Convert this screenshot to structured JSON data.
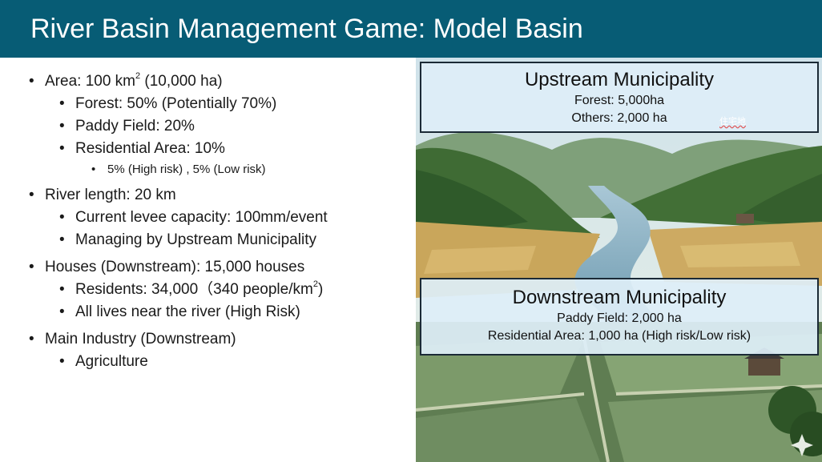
{
  "slide": {
    "title": "River Basin Management Game: Model Basin"
  },
  "bullets": [
    {
      "level": 1,
      "text": "Area: 100 km",
      "sup": "2",
      "after": " (10,000 ha)"
    },
    {
      "level": 2,
      "text": "Forest: 50% (Potentially 70%)"
    },
    {
      "level": 2,
      "text": "Paddy Field: 20%"
    },
    {
      "level": 2,
      "text": "Residential Area: 10%"
    },
    {
      "level": 3,
      "text": "5% (High risk) , 5% (Low risk)"
    },
    {
      "level": 1,
      "text": "River length: 20 km"
    },
    {
      "level": 2,
      "text": "Current levee capacity: 100mm/event"
    },
    {
      "level": 2,
      "text": "Managing by Upstream Municipality"
    },
    {
      "level": 1,
      "text": "Houses (Downstream): 15,000 houses"
    },
    {
      "level": 2,
      "text": "Residents: 34,000（340 people/km",
      "sup": "2",
      "after": ")"
    },
    {
      "level": 2,
      "text": "All lives near the river (High Risk)"
    },
    {
      "level": 1,
      "text": "Main Industry (Downstream)"
    },
    {
      "level": 2,
      "text": "Agriculture"
    }
  ],
  "upstream": {
    "heading": "Upstream Municipality",
    "line1": "Forest: 5,000ha",
    "line2": "Others: 2,000 ha",
    "annotation": "住宅地"
  },
  "downstream": {
    "heading": "Downstream Municipality",
    "line1": "Paddy Field: 2,000 ha",
    "line2": "Residential Area: 1,000 ha (High risk/Low risk)"
  },
  "colors": {
    "title_bar": "#075c75",
    "box_fill": "#deeef7",
    "box_border": "#1b2a36"
  }
}
